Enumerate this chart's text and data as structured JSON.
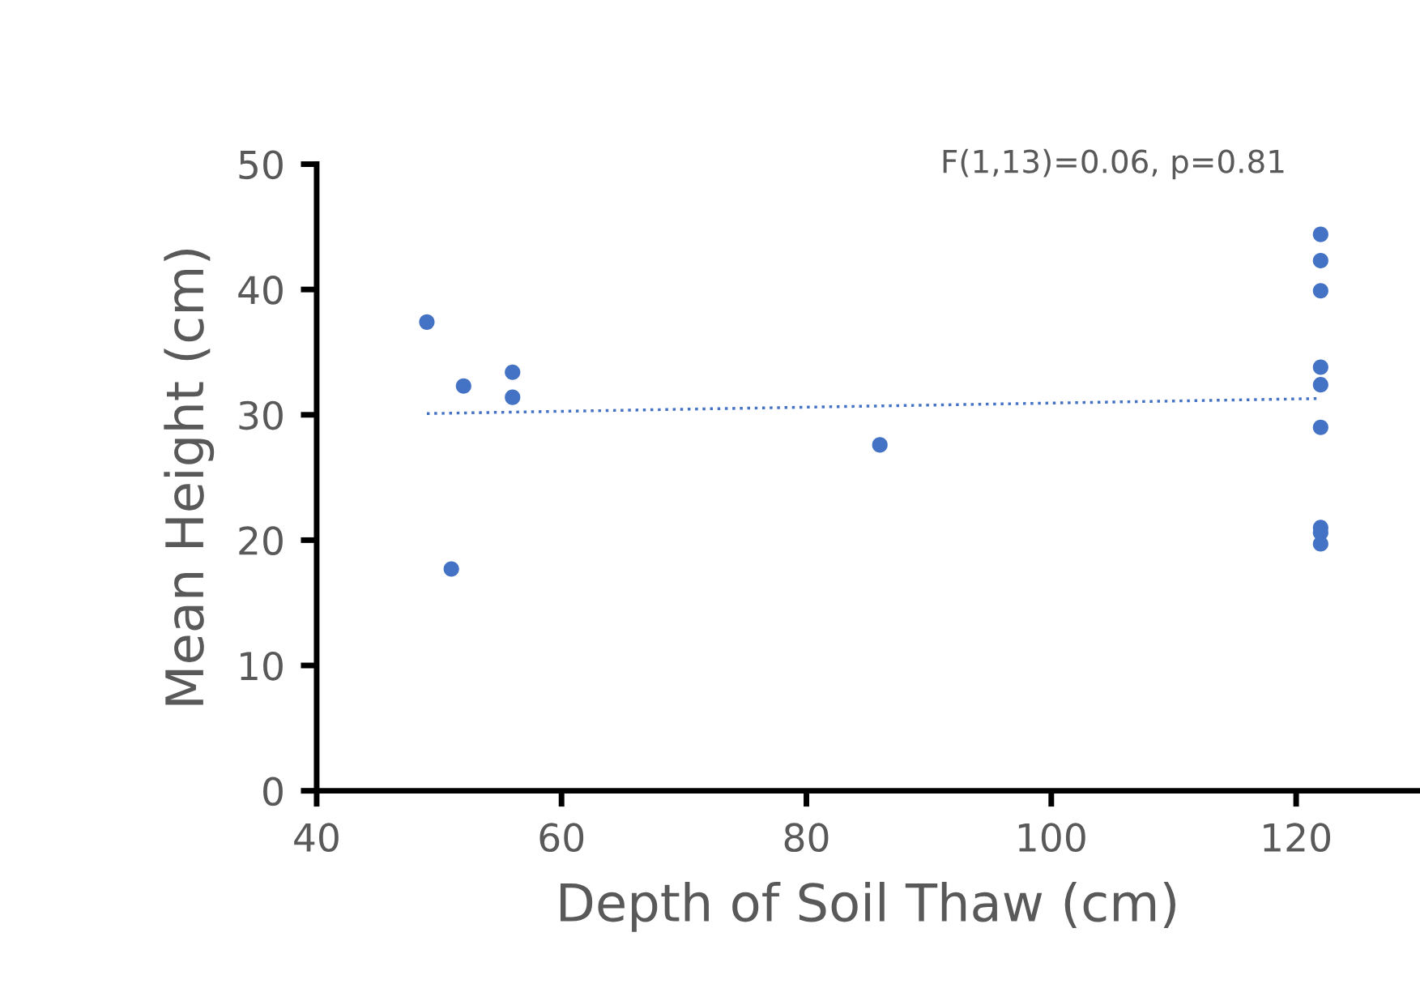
{
  "chart_data": {
    "type": "scatter",
    "xlabel": "Depth of Soil Thaw (cm)",
    "ylabel": "Mean Height (cm)",
    "annotations": [
      "F(1,13)=0.06, p=0.81"
    ],
    "series": [
      {
        "color": "#4472c4",
        "marker": "circle",
        "x": [
          49,
          51,
          52,
          56,
          56,
          86,
          122,
          122,
          122,
          122,
          122,
          122,
          122,
          122,
          122
        ],
        "values": [
          37.4,
          17.7,
          32.3,
          33.4,
          31.4,
          27.6,
          44.4,
          42.3,
          39.9,
          33.8,
          32.4,
          29.0,
          21.0,
          20.6,
          19.7
        ]
      },
      {
        "type": "line",
        "color": "#4472c4",
        "line_style": "dotted",
        "x": [
          49,
          122
        ],
        "values": [
          30.1,
          31.3
        ]
      }
    ],
    "xlim": [
      40,
      130
    ],
    "xticks": [
      40,
      60,
      80,
      100,
      120
    ],
    "ylim": [
      0,
      50
    ],
    "yticks": [
      0,
      10,
      20,
      30,
      40,
      50
    ],
    "grid": false,
    "legend": false
  }
}
